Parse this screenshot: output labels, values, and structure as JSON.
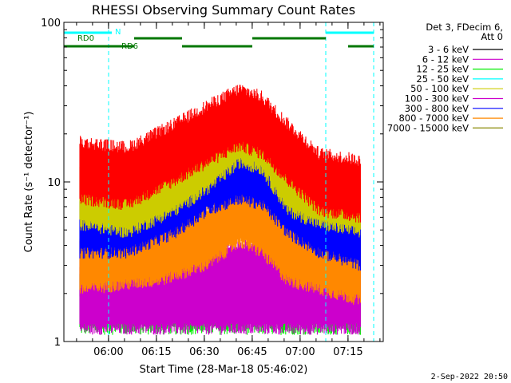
{
  "chart_data": {
    "type": "line",
    "title": "RHESSI Observing Summary Count Rates",
    "xlabel": "Start Time (28-Mar-18 05:46:02)",
    "ylabel": "Count Rate (s⁻¹ detector⁻¹)",
    "yscale": "log",
    "ylim": [
      1,
      100
    ],
    "xlim_minutes": [
      0,
      100
    ],
    "x_ticks": [
      {
        "label": "06:00",
        "min": 13.97
      },
      {
        "label": "06:15",
        "min": 28.97
      },
      {
        "label": "06:30",
        "min": 43.97
      },
      {
        "label": "06:45",
        "min": 58.97
      },
      {
        "label": "07:00",
        "min": 73.97
      },
      {
        "label": "07:15",
        "min": 88.97
      }
    ],
    "y_ticks": [
      {
        "label": "100",
        "value": 100
      },
      {
        "label": "10",
        "value": 10
      },
      {
        "label": "1",
        "value": 1
      }
    ],
    "legend_header": [
      "Det 3, FDecim 6,",
      "Att 0"
    ],
    "series": [
      {
        "name": "3 - 6 keV",
        "color": "#000000",
        "profile": []
      },
      {
        "name": "6 - 12 keV",
        "color": "#cc00cc",
        "profile": [
          [
            5,
            2
          ],
          [
            60,
            2
          ],
          [
            93,
            2
          ]
        ]
      },
      {
        "name": "12 - 25 keV",
        "color": "#00ee00",
        "profile": [
          [
            5,
            2
          ],
          [
            60,
            2
          ],
          [
            93,
            2
          ]
        ]
      },
      {
        "name": "25 - 50 keV",
        "color": "#00ffff",
        "profile": []
      },
      {
        "name": "50 - 100 keV",
        "color": "#cccc00",
        "profile": [
          [
            5,
            9
          ],
          [
            20,
            8
          ],
          [
            35,
            11
          ],
          [
            45,
            15
          ],
          [
            55,
            22
          ],
          [
            62,
            20
          ],
          [
            70,
            11
          ],
          [
            80,
            9
          ],
          [
            93,
            8
          ]
        ]
      },
      {
        "name": "100 - 300 keV",
        "color": "#cc00cc",
        "profile": [
          [
            5,
            3
          ],
          [
            93,
            3
          ]
        ]
      },
      {
        "name": "300 - 800 keV",
        "color": "#0000ff",
        "profile": [
          [
            5,
            6
          ],
          [
            20,
            6
          ],
          [
            35,
            8
          ],
          [
            45,
            11
          ],
          [
            55,
            13
          ],
          [
            62,
            12
          ],
          [
            70,
            8
          ],
          [
            80,
            6
          ],
          [
            93,
            5
          ]
        ]
      },
      {
        "name": "800 - 7000 keV",
        "color": "#ff8800",
        "profile": [
          [
            5,
            3.5
          ],
          [
            30,
            4
          ],
          [
            45,
            5
          ],
          [
            55,
            7
          ],
          [
            62,
            6
          ],
          [
            70,
            4
          ],
          [
            93,
            3
          ]
        ]
      },
      {
        "name": "7000 - 15000 keV",
        "color": "#888800",
        "profile": []
      },
      {
        "name": "",
        "color": "#ff0000",
        "profile": [
          [
            5,
            13
          ],
          [
            20,
            12
          ],
          [
            35,
            17
          ],
          [
            45,
            22
          ],
          [
            55,
            28
          ],
          [
            62,
            25
          ],
          [
            70,
            17
          ],
          [
            80,
            11
          ],
          [
            93,
            10
          ]
        ]
      }
    ],
    "data_start_min": 5,
    "data_end_min": 93,
    "vlines_min": [
      0,
      14,
      82,
      97
    ],
    "attenuator_bars": [
      {
        "label": "N",
        "color": "#00ffff",
        "row": 0,
        "segments": [
          [
            0,
            15
          ],
          [
            82,
            97
          ]
        ]
      },
      {
        "label": "RD0",
        "color": "#007700",
        "row": 1,
        "segments": [
          [
            22,
            37
          ],
          [
            59,
            82
          ]
        ]
      },
      {
        "label": "RD6",
        "color": "#007700",
        "row": 2,
        "segments": [
          [
            0,
            22
          ],
          [
            37,
            59
          ],
          [
            89,
            97
          ]
        ]
      }
    ],
    "date_stamp": "2-Sep-2022 20:50"
  }
}
